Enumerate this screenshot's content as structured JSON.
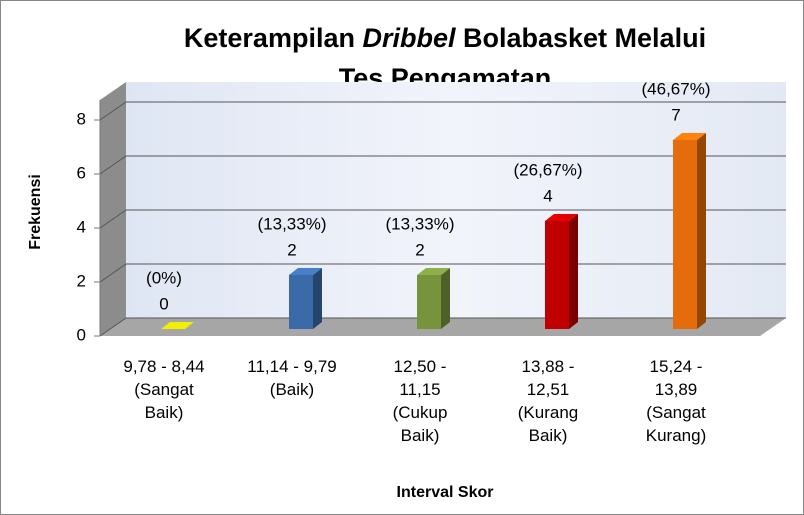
{
  "chart_data": {
    "type": "bar3d",
    "title": [
      {
        "text": "Keterampilan "
      },
      {
        "text": "Dribbel",
        "italic": true
      },
      {
        "text": " Bolabasket Melalui"
      },
      {
        "text": "Tes Pengamatan"
      }
    ],
    "x_label": "Interval Skor",
    "y_label": "Frekuensi",
    "categories": [
      "9,78 - 8,44 (Sangat Baik)",
      "11,14 - 9,79 (Baik)",
      "12,50 - 11,15 (Cukup Baik)",
      "13,88 - 12,51 (Kurang Baik)",
      "15,24 - 13,89 (Sangat Kurang)"
    ],
    "values": [
      0,
      2,
      2,
      4,
      7
    ],
    "percentages": [
      0,
      13.33,
      13.33,
      26.67,
      46.67
    ],
    "percentage_labels": [
      "(0%)",
      "(13,33%)",
      "(13,33%)",
      "(26,67%)",
      "(46,67%)"
    ],
    "colors": [
      "#c8c800",
      "#3b6aa8",
      "#77933c",
      "#c00000",
      "#e46c0a"
    ],
    "ylim": [
      0,
      8
    ],
    "yticks": [
      0,
      2,
      4,
      6,
      8
    ],
    "grid": true
  }
}
